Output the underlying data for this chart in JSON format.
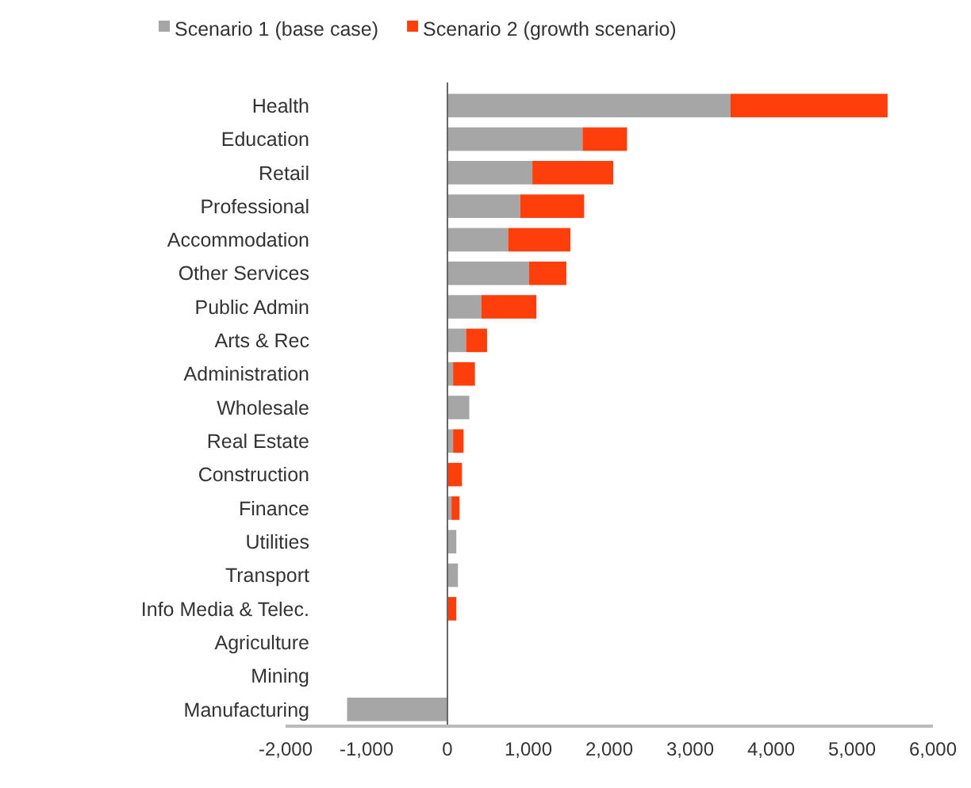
{
  "chart_data": {
    "type": "bar",
    "orientation": "horizontal",
    "stacked": true,
    "categories": [
      "Health",
      "Education",
      "Retail",
      "Professional",
      "Accommodation",
      "Other Services",
      "Public Admin",
      "Arts & Rec",
      "Administration",
      "Wholesale",
      "Real Estate",
      "Construction",
      "Finance",
      "Utilities",
      "Transport",
      "Info Media & Telec.",
      "Agriculture",
      "Mining",
      "Manufacturing"
    ],
    "series": [
      {
        "name": "Scenario 1 (base case)",
        "color": "#a6a6a6",
        "values": [
          3500,
          1670,
          1050,
          900,
          750,
          1010,
          420,
          230,
          70,
          270,
          70,
          null,
          50,
          110,
          130,
          null,
          0,
          0,
          -1240
        ]
      },
      {
        "name": "Scenario 2 (growth scenario)",
        "color": "#fe3f0c",
        "values": [
          1940,
          550,
          1000,
          790,
          770,
          460,
          680,
          260,
          270,
          0,
          130,
          180,
          100,
          0,
          0,
          110,
          0,
          0,
          0
        ]
      }
    ],
    "xlim": [
      -2000,
      6000
    ],
    "xticks": [
      {
        "value": -2000,
        "label": "-2,000"
      },
      {
        "value": -1000,
        "label": "-1,000"
      },
      0,
      {
        "value": 1000,
        "label": "1,000"
      },
      {
        "value": 2000,
        "label": "2,000"
      },
      {
        "value": 3000,
        "label": "3,000"
      },
      {
        "value": 4000,
        "label": "4,000"
      },
      {
        "value": 5000,
        "label": "5,000"
      },
      {
        "value": 6000,
        "label": "6,000"
      }
    ],
    "ref_lines": [
      {
        "axis": "x",
        "value": 0,
        "color": "#666666"
      }
    ],
    "grid": false,
    "legend": "top"
  }
}
